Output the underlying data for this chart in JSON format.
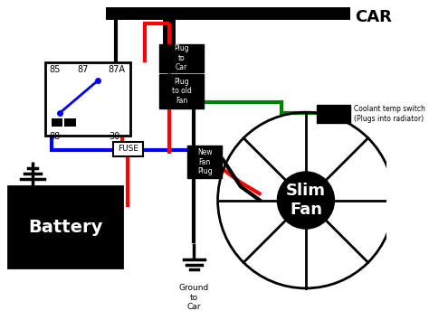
{
  "bg_color": "#ffffff",
  "line_colors": {
    "black": "#000000",
    "red": "#ff0000",
    "blue": "#0000ff",
    "green": "#008000"
  },
  "labels": {
    "car": "CAR",
    "battery": "Battery",
    "fuse": "FUSE",
    "slim_fan": "Slim\nFan",
    "ground_to_car": "Ground\nto\nCar",
    "plug_to_car": "Plug\nto\nCar",
    "plug_to_old_fan": "Plug\nto old\nFan",
    "new_fan_plug": "New\nFan\nPlug",
    "coolant_temp": "Coolant temp switch\n(Plugs into radiator)",
    "r85": "85",
    "r87": "87",
    "r87A": "87A",
    "r88": "88",
    "r30": "30"
  }
}
